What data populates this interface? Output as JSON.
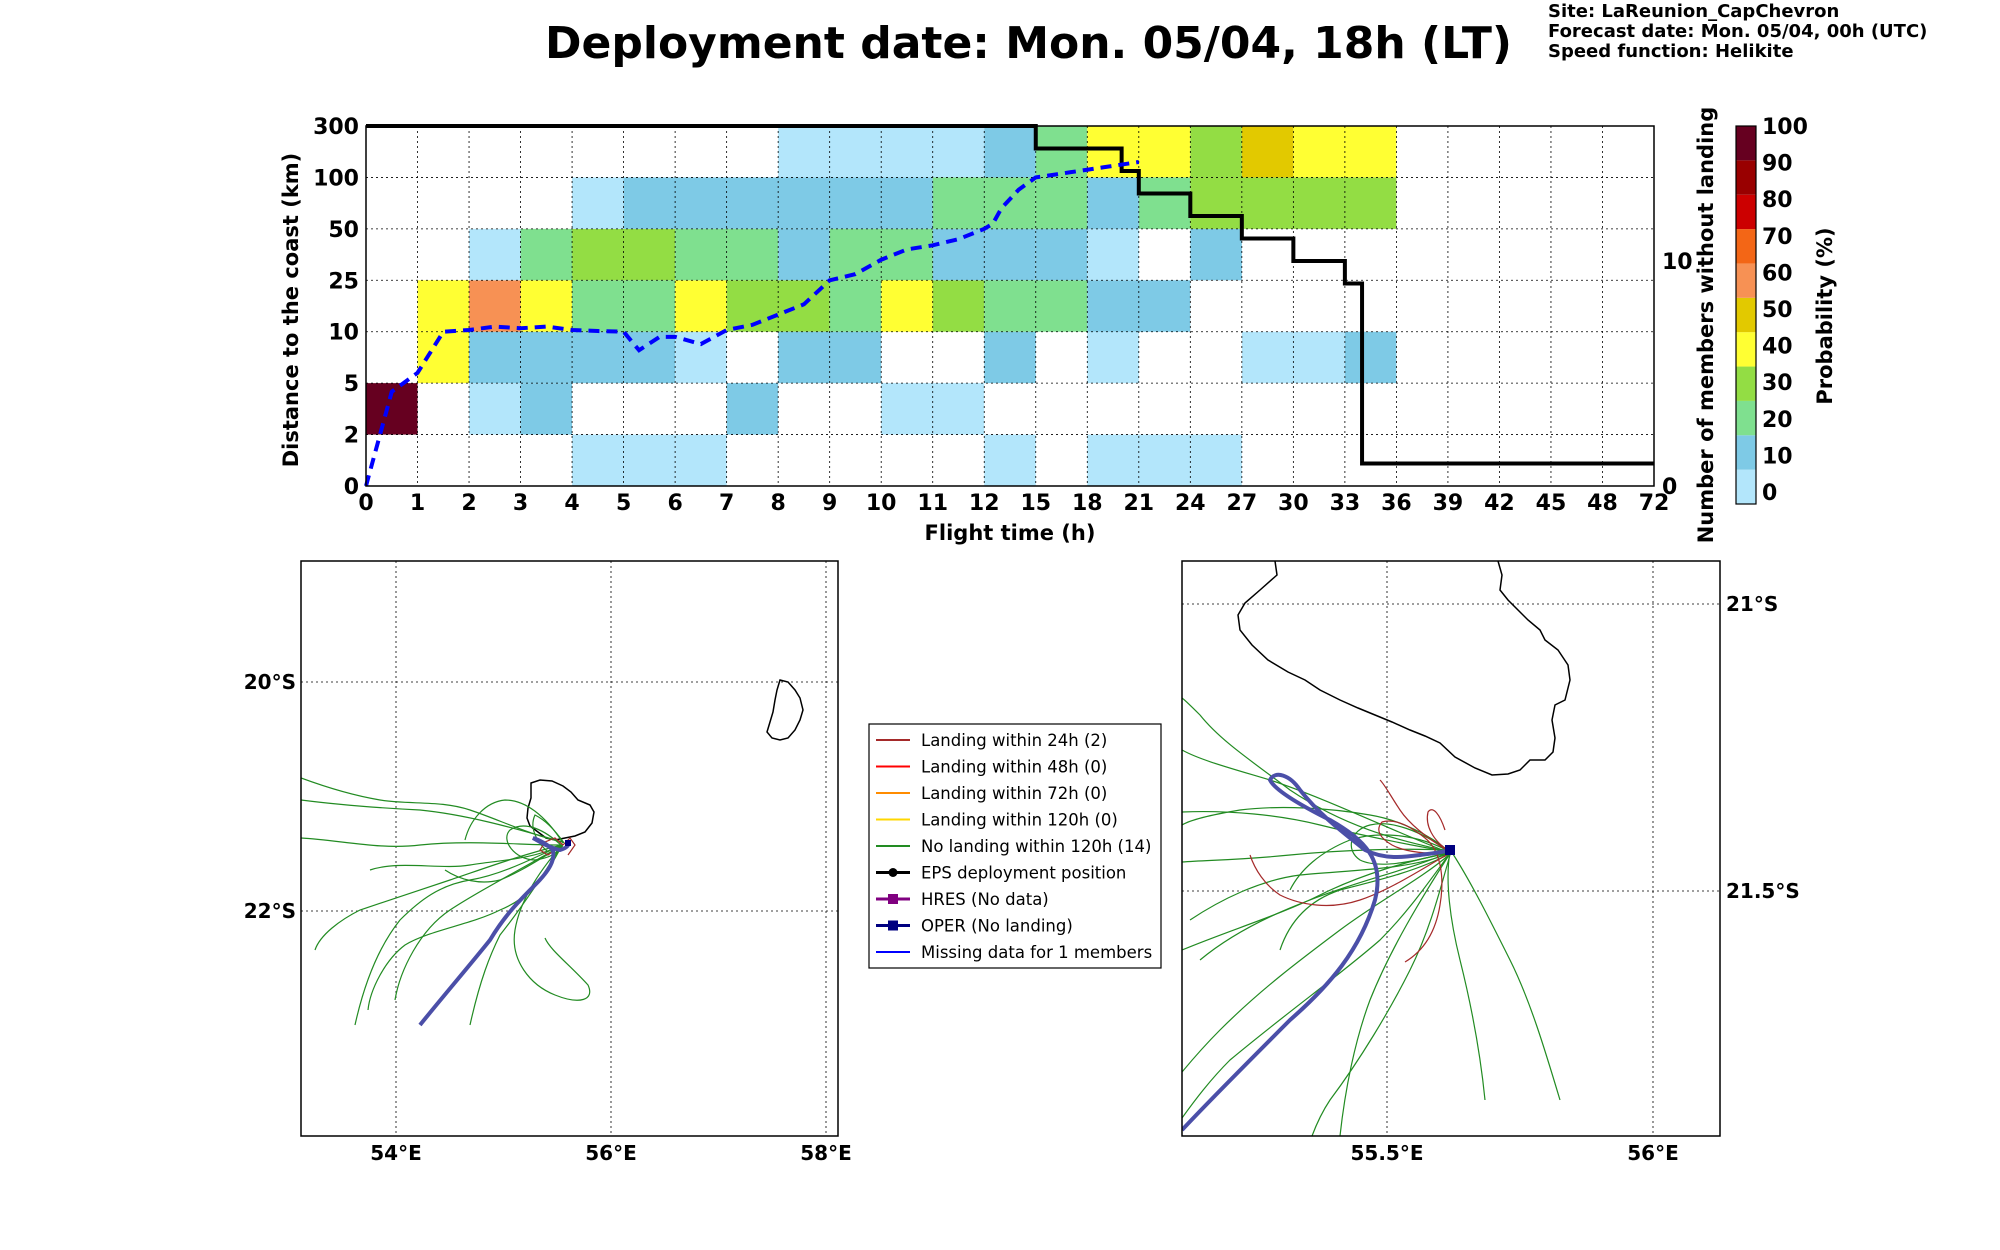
{
  "header": {
    "title": "Deployment date: Mon. 05/04, 18h (LT)",
    "site": "Site: LaReunion_CapChevron",
    "forecast": "Forecast date: Mon. 05/04, 00h (UTC)",
    "speed": "Speed function: Helikite"
  },
  "colors": {
    "bins": [
      "#b3e6fb",
      "#7ecae6",
      "#7fe08f",
      "#93dd44",
      "#ffff33",
      "#e2c900",
      "#f79154",
      "#f36616",
      "#cc0000",
      "#990000",
      "#660020"
    ],
    "landing_24h": "#a52a2a",
    "landing_48h": "#ff0000",
    "landing_72h": "#ff8c00",
    "landing_120h": "#ffd700",
    "no_landing": "#228b22",
    "eps": "#000000",
    "hres": "#800080",
    "oper": "#000080",
    "missing": "#0000ff",
    "oper_track": "#4b4fa8",
    "median_line": "#0000ff"
  },
  "chart_data": [
    {
      "type": "heatmap",
      "xlabel": "Flight time (h)",
      "ylabel": "Distance to the coast (km)",
      "y2label": "Number of members without landing",
      "colorbar_label": "Probability (%)",
      "x_ticks": [
        "0",
        "1",
        "2",
        "3",
        "4",
        "5",
        "6",
        "7",
        "8",
        "9",
        "10",
        "11",
        "12",
        "15",
        "18",
        "21",
        "24",
        "27",
        "30",
        "33",
        "36",
        "39",
        "42",
        "45",
        "48",
        "72"
      ],
      "y_ticks": [
        "0",
        "2",
        "5",
        "10",
        "25",
        "50",
        "100",
        "300"
      ],
      "y2_ticks": [
        "0",
        "10"
      ],
      "y2lim": [
        0,
        16
      ],
      "colorbar_ticks": [
        "0",
        "10",
        "20",
        "30",
        "40",
        "50",
        "60",
        "70",
        "80",
        "90",
        "100"
      ],
      "grid": true,
      "cells": [
        {
          "x": [
            0,
            1
          ],
          "y": [
            2,
            5
          ],
          "bin": 10
        },
        {
          "x": [
            1,
            2
          ],
          "y": [
            5,
            10
          ],
          "bin": 4
        },
        {
          "x": [
            1,
            2
          ],
          "y": [
            10,
            25
          ],
          "bin": 4
        },
        {
          "x": [
            2,
            3
          ],
          "y": [
            2,
            5
          ],
          "bin": 0
        },
        {
          "x": [
            2,
            3
          ],
          "y": [
            5,
            10
          ],
          "bin": 1
        },
        {
          "x": [
            2,
            3
          ],
          "y": [
            10,
            25
          ],
          "bin": 6
        },
        {
          "x": [
            2,
            3
          ],
          "y": [
            25,
            50
          ],
          "bin": 0
        },
        {
          "x": [
            3,
            4
          ],
          "y": [
            2,
            5
          ],
          "bin": 1
        },
        {
          "x": [
            3,
            4
          ],
          "y": [
            5,
            10
          ],
          "bin": 1
        },
        {
          "x": [
            3,
            4
          ],
          "y": [
            10,
            25
          ],
          "bin": 4
        },
        {
          "x": [
            3,
            4
          ],
          "y": [
            25,
            50
          ],
          "bin": 2
        },
        {
          "x": [
            4,
            6
          ],
          "y": [
            0,
            2
          ],
          "bin": 0
        },
        {
          "x": [
            4,
            6
          ],
          "y": [
            5,
            10
          ],
          "bin": 1
        },
        {
          "x": [
            4,
            6
          ],
          "y": [
            10,
            25
          ],
          "bin": 2
        },
        {
          "x": [
            4,
            6
          ],
          "y": [
            25,
            50
          ],
          "bin": 3
        },
        {
          "x": [
            4,
            5
          ],
          "y": [
            50,
            100
          ],
          "bin": 0
        },
        {
          "x": [
            5,
            11
          ],
          "y": [
            50,
            100
          ],
          "bin": 1
        },
        {
          "x": [
            6,
            7
          ],
          "y": [
            0,
            2
          ],
          "bin": 0
        },
        {
          "x": [
            6,
            7
          ],
          "y": [
            5,
            10
          ],
          "bin": 0
        },
        {
          "x": [
            6,
            7
          ],
          "y": [
            10,
            25
          ],
          "bin": 4
        },
        {
          "x": [
            6,
            8
          ],
          "y": [
            25,
            50
          ],
          "bin": 2
        },
        {
          "x": [
            7,
            8
          ],
          "y": [
            2,
            5
          ],
          "bin": 1
        },
        {
          "x": [
            7,
            9
          ],
          "y": [
            10,
            25
          ],
          "bin": 3
        },
        {
          "x": [
            8,
            10
          ],
          "y": [
            5,
            10
          ],
          "bin": 1
        },
        {
          "x": [
            8,
            9
          ],
          "y": [
            25,
            50
          ],
          "bin": 1
        },
        {
          "x": [
            8,
            12
          ],
          "y": [
            100,
            300
          ],
          "bin": 0
        },
        {
          "x": [
            9,
            10
          ],
          "y": [
            10,
            25
          ],
          "bin": 2
        },
        {
          "x": [
            9,
            11
          ],
          "y": [
            25,
            50
          ],
          "bin": 2
        },
        {
          "x": [
            10,
            12
          ],
          "y": [
            2,
            5
          ],
          "bin": 0
        },
        {
          "x": [
            10,
            11
          ],
          "y": [
            10,
            25
          ],
          "bin": 4
        },
        {
          "x": [
            11,
            12
          ],
          "y": [
            10,
            25
          ],
          "bin": 3
        },
        {
          "x": [
            11,
            15
          ],
          "y": [
            25,
            50
          ],
          "bin": 1
        },
        {
          "x": [
            11,
            15
          ],
          "y": [
            50,
            100
          ],
          "bin": 2
        },
        {
          "x": [
            12,
            15
          ],
          "y": [
            0,
            2
          ],
          "bin": 0
        },
        {
          "x": [
            12,
            15
          ],
          "y": [
            5,
            10
          ],
          "bin": 1
        },
        {
          "x": [
            12,
            18
          ],
          "y": [
            10,
            25
          ],
          "bin": 2
        },
        {
          "x": [
            12,
            15
          ],
          "y": [
            100,
            300
          ],
          "bin": 1
        },
        {
          "x": [
            15,
            18
          ],
          "y": [
            25,
            50
          ],
          "bin": 1
        },
        {
          "x": [
            15,
            18
          ],
          "y": [
            50,
            100
          ],
          "bin": 2
        },
        {
          "x": [
            15,
            18
          ],
          "y": [
            100,
            300
          ],
          "bin": 2
        },
        {
          "x": [
            18,
            24
          ],
          "y": [
            0,
            2
          ],
          "bin": 0
        },
        {
          "x": [
            18,
            21
          ],
          "y": [
            5,
            10
          ],
          "bin": 0
        },
        {
          "x": [
            18,
            24
          ],
          "y": [
            10,
            25
          ],
          "bin": 1
        },
        {
          "x": [
            18,
            21
          ],
          "y": [
            25,
            50
          ],
          "bin": 0
        },
        {
          "x": [
            18,
            21
          ],
          "y": [
            50,
            100
          ],
          "bin": 1
        },
        {
          "x": [
            18,
            24
          ],
          "y": [
            100,
            300
          ],
          "bin": 4
        },
        {
          "x": [
            21,
            24
          ],
          "y": [
            50,
            100
          ],
          "bin": 2
        },
        {
          "x": [
            24,
            27
          ],
          "y": [
            0,
            2
          ],
          "bin": 0
        },
        {
          "x": [
            24,
            27
          ],
          "y": [
            25,
            50
          ],
          "bin": 1
        },
        {
          "x": [
            24,
            36
          ],
          "y": [
            50,
            100
          ],
          "bin": 3
        },
        {
          "x": [
            24,
            27
          ],
          "y": [
            100,
            300
          ],
          "bin": 3
        },
        {
          "x": [
            27,
            30
          ],
          "y": [
            100,
            300
          ],
          "bin": 5
        },
        {
          "x": [
            30,
            36
          ],
          "y": [
            100,
            300
          ],
          "bin": 4
        },
        {
          "x": [
            27,
            33
          ],
          "y": [
            5,
            10
          ],
          "bin": 0
        },
        {
          "x": [
            33,
            36
          ],
          "y": [
            5,
            10
          ],
          "bin": 1
        }
      ],
      "members_without_landing": {
        "x": [
          0,
          15,
          15,
          20,
          20,
          21,
          21,
          24,
          24,
          27,
          27,
          30,
          30,
          33,
          33,
          34,
          34,
          72
        ],
        "y": [
          16,
          16,
          15,
          15,
          14,
          14,
          13,
          13,
          12,
          12,
          11,
          11,
          10,
          10,
          9,
          9,
          1,
          1
        ]
      },
      "median_distance": {
        "x": [
          0,
          0.5,
          1,
          1.5,
          2,
          2.5,
          3,
          3.5,
          4,
          4.5,
          5,
          5.3,
          5.7,
          6,
          6.5,
          7,
          7.5,
          8,
          8.5,
          9,
          9.5,
          10,
          10.5,
          11,
          11.5,
          12,
          12.5,
          13,
          14,
          15,
          16,
          17,
          18,
          19,
          20,
          21
        ],
        "y": [
          0,
          4.5,
          6,
          10,
          10.5,
          11.5,
          11,
          11.5,
          10.5,
          10.2,
          10,
          8.2,
          9.5,
          9.5,
          8.8,
          10.5,
          12,
          15,
          18,
          25,
          28,
          35,
          40,
          42,
          45,
          50,
          55,
          70,
          88,
          100,
          110,
          120,
          130,
          140,
          150,
          160
        ]
      }
    },
    {
      "type": "map",
      "name": "overview",
      "lon_ticks": [
        "54°E",
        "56°E",
        "58°E"
      ],
      "lat_ticks": [
        "20°S",
        "22°S"
      ],
      "legend": [
        {
          "label": "Landing within 24h (2)",
          "color_key": "landing_24h",
          "marker": ""
        },
        {
          "label": "Landing within 48h (0)",
          "color_key": "landing_48h",
          "marker": ""
        },
        {
          "label": "Landing within 72h (0)",
          "color_key": "landing_72h",
          "marker": ""
        },
        {
          "label": "Landing within 120h (0)",
          "color_key": "landing_120h",
          "marker": ""
        },
        {
          "label": "No landing within 120h (14)",
          "color_key": "no_landing",
          "marker": ""
        },
        {
          "label": "EPS deployment position",
          "color_key": "eps",
          "marker": "circle"
        },
        {
          "label": "HRES (No data)",
          "color_key": "hres",
          "marker": "square"
        },
        {
          "label": "OPER (No landing)",
          "color_key": "oper",
          "marker": "square"
        },
        {
          "label": "Missing data for 1 members",
          "color_key": "missing",
          "marker": ""
        }
      ]
    },
    {
      "type": "map",
      "name": "zoom",
      "lon_ticks": [
        "55.5°E",
        "56°E"
      ],
      "lat_ticks": [
        "21°S",
        "21.5°S"
      ]
    }
  ]
}
